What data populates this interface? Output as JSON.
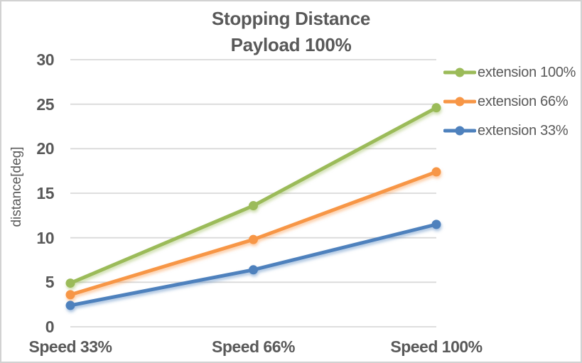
{
  "chart": {
    "title_line1": "Stopping Distance",
    "title_line2": "Payload 100%",
    "y_axis_title": "distance[deg]"
  },
  "chart_data": {
    "type": "line",
    "title": "Stopping Distance",
    "subtitle": "Payload 100%",
    "xlabel": "",
    "ylabel": "distance[deg]",
    "categories": [
      "Speed 33%",
      "Speed 66%",
      "Speed 100%"
    ],
    "series": [
      {
        "name": "extension 100%",
        "color": "#9BBB59",
        "values": [
          4.9,
          13.6,
          24.6
        ]
      },
      {
        "name": "extension 66%",
        "color": "#F79646",
        "values": [
          3.6,
          9.8,
          17.4
        ]
      },
      {
        "name": "extension 33%",
        "color": "#4E81BD",
        "values": [
          2.4,
          6.4,
          11.5
        ]
      }
    ],
    "ylim": [
      0,
      30
    ],
    "yticks": [
      0,
      5,
      10,
      15,
      20,
      25,
      30
    ],
    "grid": true,
    "legend_position": "right",
    "marker": "circle"
  },
  "colors": {
    "text": "#595959",
    "gridline": "#D9D9D9",
    "background": "#FFFFFF",
    "border": "#D2D2D2"
  }
}
